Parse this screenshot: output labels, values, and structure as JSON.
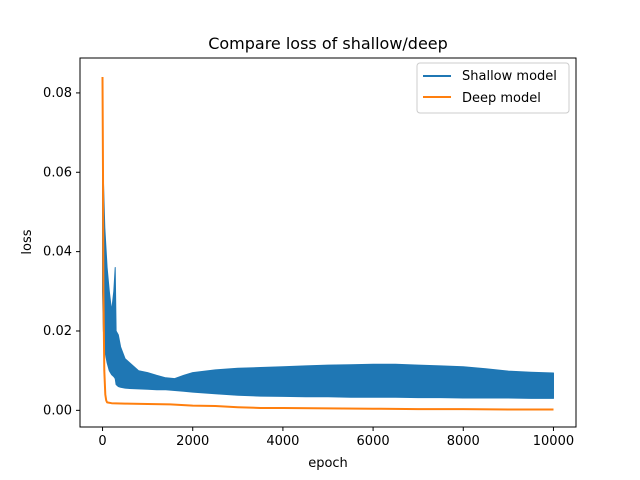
{
  "chart_data": {
    "type": "line",
    "title": "Compare loss of shallow/deep",
    "xlabel": "epoch",
    "ylabel": "loss",
    "xlim": [
      -500,
      10500
    ],
    "ylim": [
      -0.0042,
      0.0888
    ],
    "x_ticks": [
      0,
      2000,
      4000,
      6000,
      8000,
      10000
    ],
    "x_tick_labels": [
      "0",
      "2000",
      "4000",
      "6000",
      "8000",
      "10000"
    ],
    "y_ticks": [
      0.0,
      0.02,
      0.04,
      0.06,
      0.08
    ],
    "y_tick_labels": [
      "0.00",
      "0.02",
      "0.04",
      "0.06",
      "0.08"
    ],
    "grid": false,
    "legend": "top-right",
    "series": [
      {
        "name": "Shallow model",
        "color": "#1f77b4",
        "x": [
          0,
          20,
          50,
          100,
          150,
          200,
          250,
          280,
          300,
          350,
          400,
          500,
          600,
          800,
          1000,
          1200,
          1400,
          1600,
          1800,
          2000,
          2500,
          3000,
          3500,
          4000,
          4500,
          5000,
          5500,
          6000,
          6500,
          7000,
          7500,
          8000,
          8500,
          9000,
          9500,
          10000
        ],
        "upper": [
          0.066,
          0.058,
          0.046,
          0.036,
          0.03,
          0.025,
          0.03,
          0.036,
          0.02,
          0.019,
          0.016,
          0.013,
          0.012,
          0.01,
          0.0095,
          0.0088,
          0.0082,
          0.008,
          0.0088,
          0.0095,
          0.0102,
          0.0106,
          0.0108,
          0.011,
          0.0112,
          0.0114,
          0.0115,
          0.0116,
          0.0116,
          0.0114,
          0.0112,
          0.011,
          0.0105,
          0.0099,
          0.0096,
          0.0094
        ],
        "lower": [
          0.03,
          0.02,
          0.015,
          0.012,
          0.01,
          0.009,
          0.0085,
          0.008,
          0.0065,
          0.006,
          0.0058,
          0.0056,
          0.0055,
          0.0054,
          0.0053,
          0.0052,
          0.0052,
          0.005,
          0.0048,
          0.0046,
          0.0042,
          0.0038,
          0.0036,
          0.0035,
          0.0034,
          0.0034,
          0.0033,
          0.0033,
          0.0033,
          0.0032,
          0.0032,
          0.0031,
          0.0031,
          0.0031,
          0.003,
          0.003
        ]
      },
      {
        "name": "Deep model",
        "color": "#ff7f0e",
        "x": [
          0,
          10,
          20,
          40,
          60,
          80,
          100,
          200,
          500,
          1000,
          1500,
          2000,
          2500,
          3000,
          3500,
          4000,
          5000,
          6000,
          7000,
          8000,
          9000,
          10000
        ],
        "y": [
          0.084,
          0.06,
          0.03,
          0.01,
          0.004,
          0.0025,
          0.002,
          0.0018,
          0.0017,
          0.0016,
          0.0015,
          0.0012,
          0.0011,
          0.0008,
          0.0006,
          0.0006,
          0.0005,
          0.0004,
          0.0003,
          0.0003,
          0.0002,
          0.0002
        ]
      }
    ]
  }
}
